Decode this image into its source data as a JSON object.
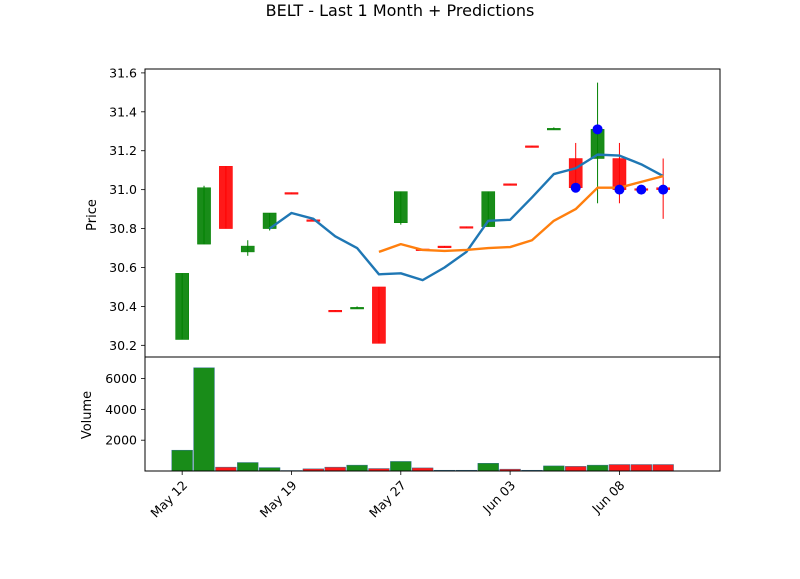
{
  "chart_data": {
    "type": "candlestick",
    "title": "BELT - Last 1 Month + Predictions",
    "price_panel": {
      "ylabel": "Price",
      "ylim": [
        30.14,
        31.62
      ],
      "yticks": [
        30.2,
        30.4,
        30.6,
        30.8,
        31.0,
        31.2,
        31.4,
        31.6
      ],
      "ytick_labels": [
        "30.2",
        "30.4",
        "30.6",
        "30.8",
        "31.0",
        "31.2",
        "31.4",
        "31.6"
      ]
    },
    "volume_panel": {
      "ylabel": "Volume",
      "ylim": [
        0,
        7400
      ],
      "yticks": [
        2000,
        4000,
        6000
      ],
      "ytick_labels": [
        "2000",
        "4000",
        "6000"
      ]
    },
    "xlim": [
      -1.7,
      24.6
    ],
    "xticks": [
      {
        "pos": 0,
        "label": "May 12"
      },
      {
        "pos": 5,
        "label": "May 19"
      },
      {
        "pos": 10,
        "label": "May 27"
      },
      {
        "pos": 15,
        "label": "Jun 03"
      },
      {
        "pos": 20,
        "label": "Jun 08"
      }
    ],
    "colors": {
      "up": "#008000",
      "down": "#ff0000",
      "ma_short": "#1f77b4",
      "ma_long": "#ff7f0e",
      "prediction": "#0000ff"
    },
    "candles": [
      {
        "o": 30.23,
        "h": 30.57,
        "l": 30.23,
        "c": 30.57,
        "v": 1350
      },
      {
        "o": 30.72,
        "h": 31.02,
        "l": 30.72,
        "c": 31.01,
        "v": 6700
      },
      {
        "o": 31.12,
        "h": 31.12,
        "l": 30.8,
        "c": 30.8,
        "v": 250
      },
      {
        "o": 30.68,
        "h": 30.74,
        "l": 30.66,
        "c": 30.71,
        "v": 550
      },
      {
        "o": 30.8,
        "h": 30.88,
        "l": 30.79,
        "c": 30.88,
        "v": 220
      },
      {
        "o": 30.985,
        "h": 30.985,
        "l": 30.98,
        "c": 30.98,
        "v": 30
      },
      {
        "o": 30.845,
        "h": 30.845,
        "l": 30.84,
        "c": 30.84,
        "v": 140
      },
      {
        "o": 30.38,
        "h": 30.38,
        "l": 30.375,
        "c": 30.375,
        "v": 250
      },
      {
        "o": 30.39,
        "h": 30.4,
        "l": 30.39,
        "c": 30.395,
        "v": 380
      },
      {
        "o": 30.5,
        "h": 30.5,
        "l": 30.21,
        "c": 30.21,
        "v": 160
      },
      {
        "o": 30.83,
        "h": 30.99,
        "l": 30.82,
        "c": 30.99,
        "v": 620
      },
      {
        "o": 30.695,
        "h": 30.695,
        "l": 30.69,
        "c": 30.69,
        "v": 200
      },
      {
        "o": 30.71,
        "h": 30.71,
        "l": 30.705,
        "c": 30.705,
        "v": 50
      },
      {
        "o": 30.81,
        "h": 30.81,
        "l": 30.805,
        "c": 30.805,
        "v": 50
      },
      {
        "o": 30.81,
        "h": 30.99,
        "l": 30.81,
        "c": 30.99,
        "v": 500
      },
      {
        "o": 31.03,
        "h": 31.03,
        "l": 31.025,
        "c": 31.025,
        "v": 120
      },
      {
        "o": 31.225,
        "h": 31.225,
        "l": 31.22,
        "c": 31.22,
        "v": 50
      },
      {
        "o": 31.31,
        "h": 31.32,
        "l": 31.31,
        "c": 31.315,
        "v": 330
      },
      {
        "o": 31.16,
        "h": 31.24,
        "l": 31.01,
        "c": 31.01,
        "v": 300
      },
      {
        "o": 31.16,
        "h": 31.55,
        "l": 30.93,
        "c": 31.31,
        "v": 380
      },
      {
        "o": 31.16,
        "h": 31.24,
        "l": 30.93,
        "c": 31.0,
        "v": 420
      },
      {
        "o": 31.005,
        "h": 31.005,
        "l": 31.0,
        "c": 31.0,
        "v": 420
      },
      {
        "o": 31.01,
        "h": 31.16,
        "l": 30.85,
        "c": 31.0,
        "v": 420
      }
    ],
    "series": [
      {
        "values": [
          null,
          null,
          null,
          null,
          30.8,
          30.88,
          30.85,
          30.76,
          30.7,
          30.565,
          30.57,
          30.535,
          30.6,
          30.68,
          30.84,
          30.845,
          30.96,
          31.08,
          31.11,
          31.18,
          31.175,
          31.13,
          31.07
        ],
        "color_key": "ma_short"
      },
      {
        "values": [
          null,
          null,
          null,
          null,
          null,
          null,
          null,
          null,
          null,
          30.68,
          30.72,
          30.69,
          30.685,
          30.69,
          30.7,
          30.705,
          30.74,
          30.84,
          30.9,
          31.01,
          31.01,
          31.04,
          31.07
        ],
        "color_key": "ma_long"
      }
    ],
    "predictions": [
      {
        "pos": 18,
        "value": 31.01
      },
      {
        "pos": 19,
        "value": 31.31
      },
      {
        "pos": 20,
        "value": 31.0
      },
      {
        "pos": 21,
        "value": 31.0
      },
      {
        "pos": 22,
        "value": 31.0
      }
    ]
  }
}
